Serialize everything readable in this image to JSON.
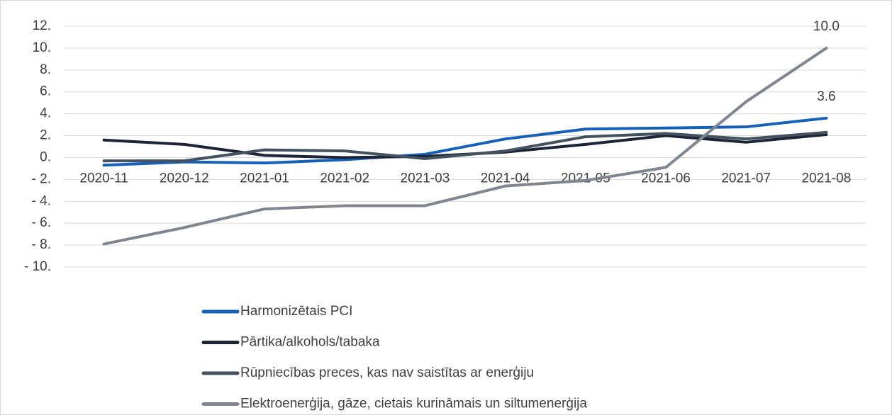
{
  "chart_data": {
    "type": "line",
    "categories": [
      "2020-11",
      "2020-12",
      "2021-01",
      "2021-02",
      "2021-03",
      "2021-04",
      "2021-05",
      "2021-06",
      "2021-07",
      "2021-08"
    ],
    "series": [
      {
        "name": "Harmonizētais PCI",
        "color": "#1660b8",
        "values": [
          -0.7,
          -0.4,
          -0.5,
          -0.2,
          0.3,
          1.7,
          2.6,
          2.7,
          2.8,
          3.6
        ],
        "value_labels": [
          null,
          null,
          null,
          null,
          null,
          null,
          null,
          null,
          null,
          "3.6"
        ]
      },
      {
        "name": "Pārtika/alkohols/tabaka",
        "color": "#1c2437",
        "values": [
          1.6,
          1.2,
          0.2,
          0.0,
          0.1,
          0.5,
          1.2,
          2.0,
          1.4,
          2.1
        ]
      },
      {
        "name": "Rūpniecības preces, kas nav saistītas ar enerģiju",
        "color": "#44515f",
        "values": [
          -0.3,
          -0.3,
          0.7,
          0.6,
          -0.1,
          0.6,
          1.9,
          2.2,
          1.7,
          2.3
        ]
      },
      {
        "name": "Elektroenerģija, gāze, cietais kurināmais un siltumenerģija",
        "color": "#7f8690",
        "values": [
          -7.9,
          -6.4,
          -4.7,
          -4.4,
          -4.4,
          -2.6,
          -2.1,
          -0.9,
          5.1,
          10.0
        ],
        "value_labels": [
          null,
          null,
          null,
          null,
          null,
          null,
          null,
          null,
          null,
          "10.0"
        ]
      }
    ],
    "ylim": [
      -10,
      12
    ],
    "yticks": [
      {
        "value": 12,
        "label": "12."
      },
      {
        "value": 10,
        "label": "10."
      },
      {
        "value": 8,
        "label": "8."
      },
      {
        "value": 6,
        "label": "6."
      },
      {
        "value": 4,
        "label": "4."
      },
      {
        "value": 2,
        "label": "2."
      },
      {
        "value": 0,
        "label": "0."
      },
      {
        "value": -2,
        "label": "- 2."
      },
      {
        "value": -4,
        "label": "- 4."
      },
      {
        "value": -6,
        "label": "- 6."
      },
      {
        "value": -8,
        "label": "- 8."
      },
      {
        "value": -10,
        "label": "- 10."
      }
    ],
    "grid": true,
    "legend": "bottom"
  }
}
